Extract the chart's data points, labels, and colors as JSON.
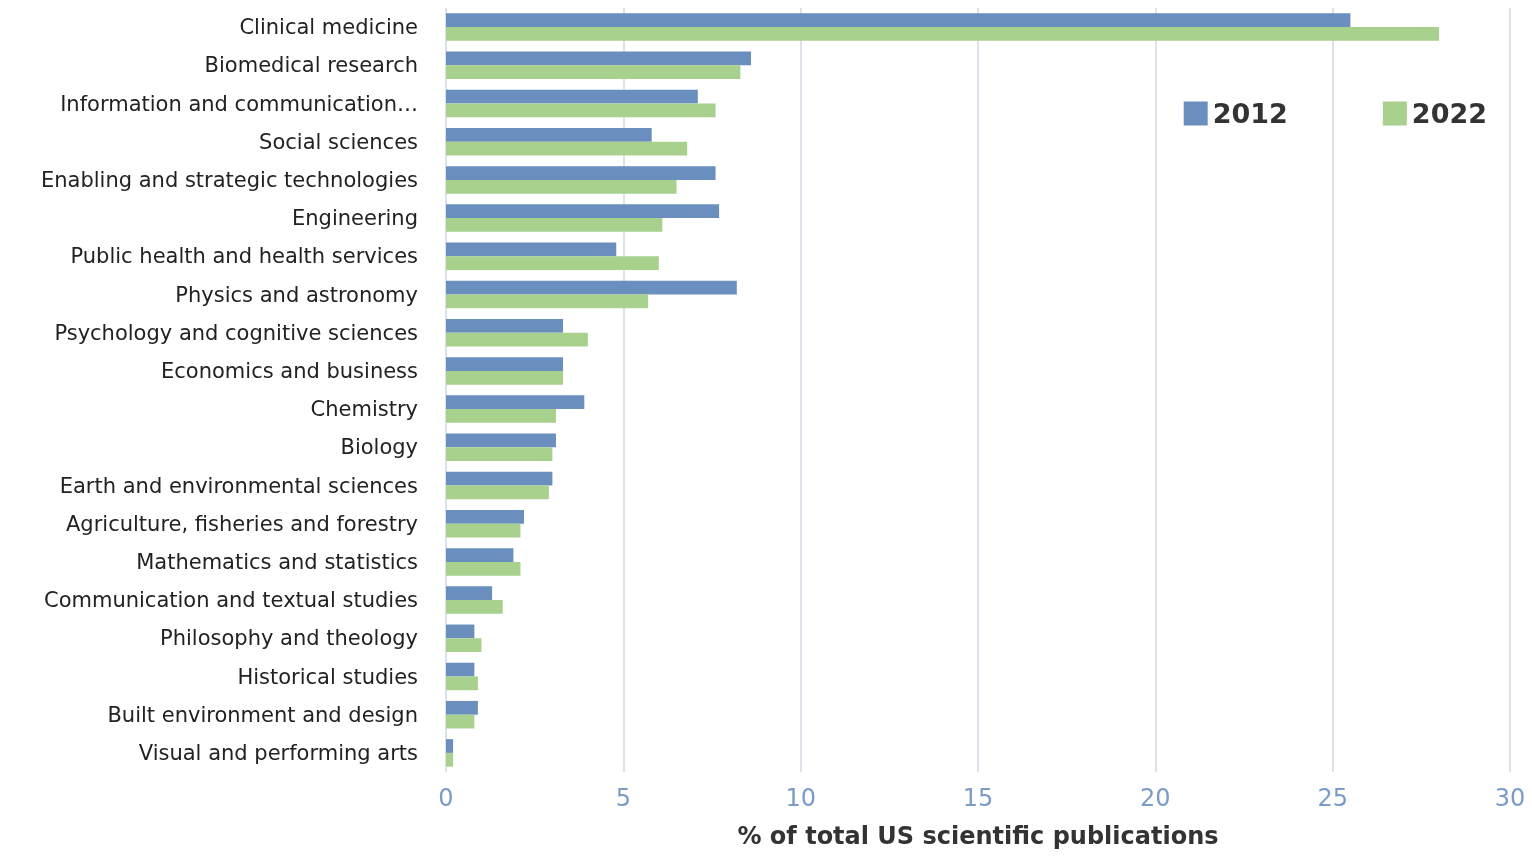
{
  "chart_data": {
    "type": "bar",
    "orientation": "horizontal",
    "xlabel": "% of total US scientific publications",
    "categories": [
      "Clinical medicine",
      "Biomedical research",
      "Information and communication…",
      "Social sciences",
      "Enabling and strategic technologies",
      "Engineering",
      "Public health and health services",
      "Physics and astronomy",
      "Psychology and cognitive sciences",
      "Economics and business",
      "Chemistry",
      "Biology",
      "Earth and environmental sciences",
      "Agriculture, fisheries and forestry",
      "Mathematics and statistics",
      "Communication and textual studies",
      "Philosophy and theology",
      "Historical studies",
      "Built environment and design",
      "Visual and performing arts"
    ],
    "series": [
      {
        "name": "2012",
        "color": "#6a8fbf",
        "values": [
          25.5,
          8.6,
          7.1,
          5.8,
          7.6,
          7.7,
          4.8,
          8.2,
          3.3,
          3.3,
          3.9,
          3.1,
          3.0,
          2.2,
          1.9,
          1.3,
          0.8,
          0.8,
          0.9,
          0.2
        ]
      },
      {
        "name": "2022",
        "color": "#a9d18e",
        "values": [
          28.0,
          8.3,
          7.6,
          6.8,
          6.5,
          6.1,
          6.0,
          5.7,
          4.0,
          3.3,
          3.1,
          3.0,
          2.9,
          2.1,
          2.1,
          1.6,
          1.0,
          0.9,
          0.8,
          0.2
        ]
      }
    ],
    "xlim": [
      0,
      30
    ],
    "xticks": [
      0,
      5,
      10,
      15,
      20,
      25,
      30
    ],
    "grid": "x",
    "legend": "top right"
  }
}
